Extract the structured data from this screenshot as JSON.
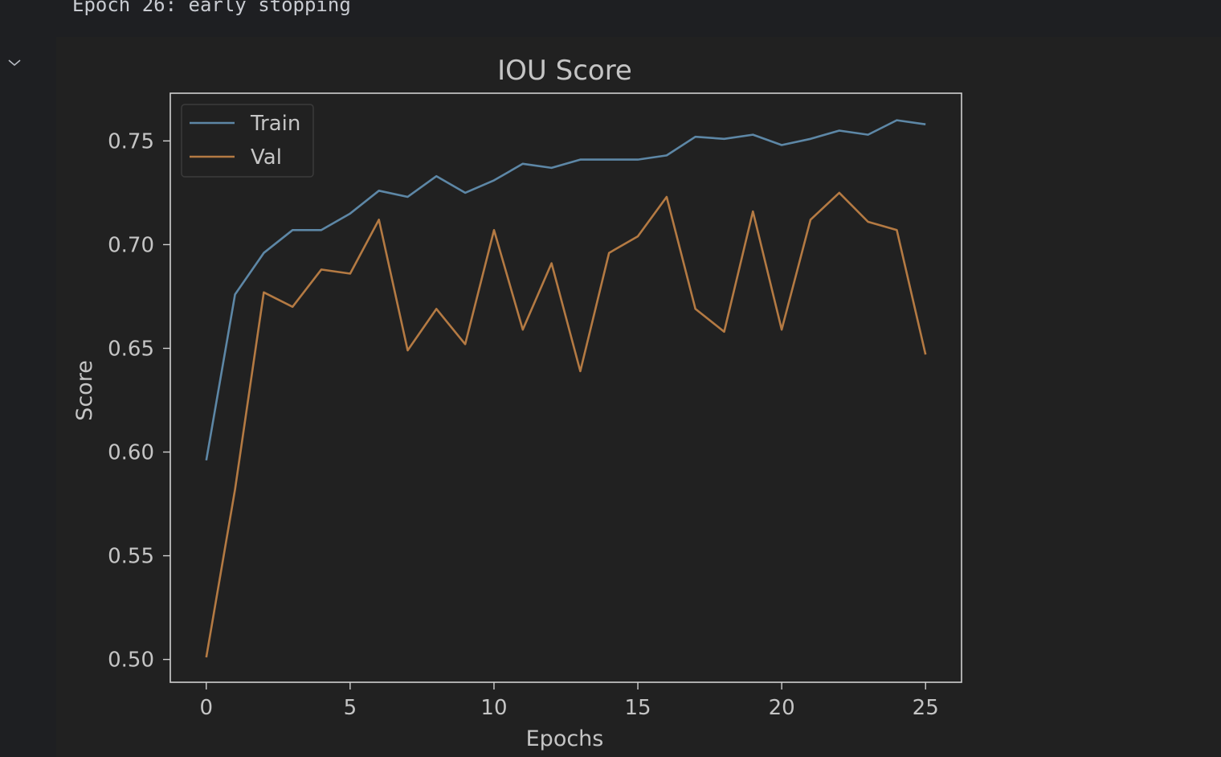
{
  "console": {
    "log_line": "Epoch 26: early stopping"
  },
  "cell": {
    "toggle_icon": "chevron-down-icon"
  },
  "colors": {
    "background": "#1e1f22",
    "plot_background": "#212121",
    "axes": "#d0d0d0",
    "text": "#c5c5c5",
    "train": "#5d87a6",
    "val": "#b47a43"
  },
  "chart_data": {
    "type": "line",
    "title": "IOU Score",
    "xlabel": "Epochs",
    "ylabel": "Score",
    "xlim": [
      -1.25,
      26.25
    ],
    "ylim": [
      0.489,
      0.773
    ],
    "xticks": [
      0,
      5,
      10,
      15,
      20,
      25
    ],
    "xtick_labels": [
      "0",
      "5",
      "10",
      "15",
      "20",
      "25"
    ],
    "yticks": [
      0.5,
      0.55,
      0.6,
      0.65,
      0.7,
      0.75
    ],
    "ytick_labels": [
      "0.50",
      "0.55",
      "0.60",
      "0.65",
      "0.70",
      "0.75"
    ],
    "legend_position": "upper-left",
    "grid": false,
    "x": [
      0,
      1,
      2,
      3,
      4,
      5,
      6,
      7,
      8,
      9,
      10,
      11,
      12,
      13,
      14,
      15,
      16,
      17,
      18,
      19,
      20,
      21,
      22,
      23,
      24,
      25
    ],
    "series": [
      {
        "name": "Train",
        "color": "#5d87a6",
        "values": [
          0.596,
          0.676,
          0.696,
          0.707,
          0.707,
          0.715,
          0.726,
          0.723,
          0.733,
          0.725,
          0.731,
          0.739,
          0.737,
          0.741,
          0.741,
          0.741,
          0.743,
          0.752,
          0.751,
          0.753,
          0.748,
          0.751,
          0.755,
          0.753,
          0.76,
          0.758
        ]
      },
      {
        "name": "Val",
        "color": "#b47a43",
        "values": [
          0.501,
          0.582,
          0.677,
          0.67,
          0.688,
          0.686,
          0.712,
          0.649,
          0.669,
          0.652,
          0.707,
          0.659,
          0.691,
          0.639,
          0.696,
          0.704,
          0.723,
          0.669,
          0.658,
          0.716,
          0.659,
          0.712,
          0.725,
          0.711,
          0.707,
          0.647
        ]
      }
    ]
  }
}
